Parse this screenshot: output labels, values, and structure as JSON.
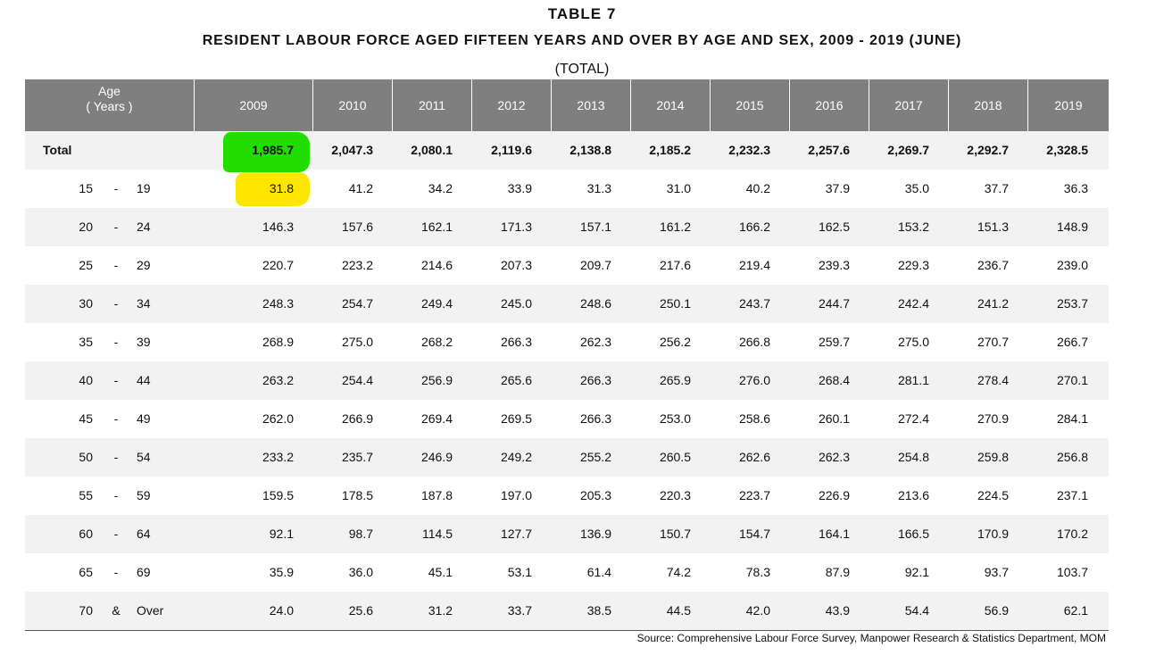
{
  "table_number": "TABLE  7",
  "title": "RESIDENT  LABOUR  FORCE  AGED  FIFTEEN  YEARS  AND  OVER  BY  AGE  AND  SEX,  2009 - 2019  (JUNE)",
  "subtitle": "(TOTAL)",
  "header": {
    "age_line1": "Age",
    "age_line2": "( Years )",
    "years": [
      "2009",
      "2010",
      "2011",
      "2012",
      "2013",
      "2014",
      "2015",
      "2016",
      "2017",
      "2018",
      "2019"
    ]
  },
  "rows": [
    {
      "label": "Total",
      "total": true,
      "values": [
        "1,985.7",
        "2,047.3",
        "2,080.1",
        "2,119.6",
        "2,138.8",
        "2,185.2",
        "2,232.3",
        "2,257.6",
        "2,269.7",
        "2,292.7",
        "2,328.5"
      ]
    },
    {
      "from": "15",
      "sep": "-",
      "to": "19",
      "values": [
        "31.8",
        "41.2",
        "34.2",
        "33.9",
        "31.3",
        "31.0",
        "40.2",
        "37.9",
        "35.0",
        "37.7",
        "36.3"
      ]
    },
    {
      "from": "20",
      "sep": "-",
      "to": "24",
      "values": [
        "146.3",
        "157.6",
        "162.1",
        "171.3",
        "157.1",
        "161.2",
        "166.2",
        "162.5",
        "153.2",
        "151.3",
        "148.9"
      ]
    },
    {
      "from": "25",
      "sep": "-",
      "to": "29",
      "values": [
        "220.7",
        "223.2",
        "214.6",
        "207.3",
        "209.7",
        "217.6",
        "219.4",
        "239.3",
        "229.3",
        "236.7",
        "239.0"
      ]
    },
    {
      "from": "30",
      "sep": "-",
      "to": "34",
      "values": [
        "248.3",
        "254.7",
        "249.4",
        "245.0",
        "248.6",
        "250.1",
        "243.7",
        "244.7",
        "242.4",
        "241.2",
        "253.7"
      ]
    },
    {
      "from": "35",
      "sep": "-",
      "to": "39",
      "values": [
        "268.9",
        "275.0",
        "268.2",
        "266.3",
        "262.3",
        "256.2",
        "266.8",
        "259.7",
        "275.0",
        "270.7",
        "266.7"
      ]
    },
    {
      "from": "40",
      "sep": "-",
      "to": "44",
      "values": [
        "263.2",
        "254.4",
        "256.9",
        "265.6",
        "266.3",
        "265.9",
        "276.0",
        "268.4",
        "281.1",
        "278.4",
        "270.1"
      ]
    },
    {
      "from": "45",
      "sep": "-",
      "to": "49",
      "values": [
        "262.0",
        "266.9",
        "269.4",
        "269.5",
        "266.3",
        "253.0",
        "258.6",
        "260.1",
        "272.4",
        "270.9",
        "284.1"
      ]
    },
    {
      "from": "50",
      "sep": "-",
      "to": "54",
      "values": [
        "233.2",
        "235.7",
        "246.9",
        "249.2",
        "255.2",
        "260.5",
        "262.6",
        "262.3",
        "254.8",
        "259.8",
        "256.8"
      ]
    },
    {
      "from": "55",
      "sep": "-",
      "to": "59",
      "values": [
        "159.5",
        "178.5",
        "187.8",
        "197.0",
        "205.3",
        "220.3",
        "223.7",
        "226.9",
        "213.6",
        "224.5",
        "237.1"
      ]
    },
    {
      "from": "60",
      "sep": "-",
      "to": "64",
      "values": [
        "92.1",
        "98.7",
        "114.5",
        "127.7",
        "136.9",
        "150.7",
        "154.7",
        "164.1",
        "166.5",
        "170.9",
        "170.2"
      ]
    },
    {
      "from": "65",
      "sep": "-",
      "to": "69",
      "values": [
        "35.9",
        "36.0",
        "45.1",
        "53.1",
        "61.4",
        "74.2",
        "78.3",
        "87.9",
        "92.1",
        "93.7",
        "103.7"
      ]
    },
    {
      "from": "70",
      "sep": "&",
      "to": "Over",
      "values": [
        "24.0",
        "25.6",
        "31.2",
        "33.7",
        "38.5",
        "44.5",
        "42.0",
        "43.9",
        "54.4",
        "56.9",
        "62.1"
      ]
    }
  ],
  "source": "Source:  Comprehensive Labour Force Survey, Manpower Research & Statistics Department, MOM",
  "colors": {
    "header_bg": "#7f7f7f",
    "row_shade": "#f2f2f2",
    "highlight_green": "#22dd00",
    "highlight_yellow": "#ffe600"
  }
}
